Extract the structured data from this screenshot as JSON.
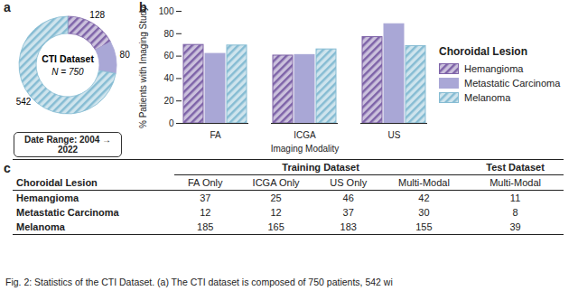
{
  "chart_data": [
    {
      "type": "pie",
      "panel": "a",
      "title": "CTI Dataset",
      "subtitle": "N = 750",
      "annotations": [
        "Date Range: 2004 → 2022"
      ],
      "categories": [
        "Hemangioma",
        "Metastatic Carcinoma",
        "Melanoma"
      ],
      "values": [
        128,
        80,
        542
      ],
      "colors": [
        "#7e63a8",
        "#a9a7d6",
        "#86bcd3"
      ],
      "data_labels": true
    },
    {
      "type": "bar",
      "panel": "b",
      "x_label": "Imaging Modality",
      "y_label": "% Patients with Imaging Study",
      "categories": [
        "FA",
        "ICGA",
        "US"
      ],
      "series": [
        {
          "name": "Hemangioma",
          "color": "#7e63a8",
          "values": [
            70,
            60.5,
            77
          ]
        },
        {
          "name": "Metastatic Carcinoma",
          "color": "#a9a7d6",
          "values": [
            62,
            61,
            88.5
          ]
        },
        {
          "name": "Melanoma",
          "color": "#86bcd3",
          "values": [
            69.5,
            66,
            69
          ]
        }
      ],
      "ylim": [
        0,
        100
      ],
      "yticks": [
        0,
        20,
        40,
        60,
        80,
        100
      ],
      "legend": "right",
      "legend_title": "Choroidal Lesion",
      "grid": false
    }
  ],
  "table": {
    "panel": "c",
    "column_groups": [
      {
        "label": "Training Dataset",
        "span": 4
      },
      {
        "label": "Test Dataset",
        "span": 1
      }
    ],
    "header": [
      "Choroidal Lesion",
      "FA Only",
      "ICGA Only",
      "US Only",
      "Multi-Modal",
      "Multi-Modal"
    ],
    "rows": [
      [
        "Hemangioma",
        37,
        25,
        46,
        42,
        11
      ],
      [
        "Metastatic Carcinoma",
        12,
        12,
        37,
        30,
        8
      ],
      [
        "Melanoma",
        185,
        165,
        183,
        155,
        39
      ]
    ]
  },
  "caption": "Fig. 2: Statistics of the CTI Dataset. (a) The CTI dataset is composed of 750 patients, 542 wi"
}
